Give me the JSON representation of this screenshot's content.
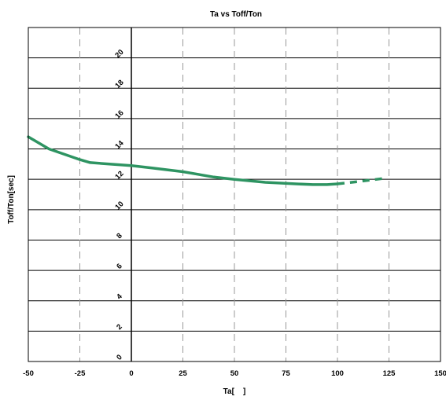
{
  "chart_data": {
    "type": "line",
    "title": "Ta vs Toff/Ton",
    "xlabel": "Ta[    ]",
    "ylabel": "Toff/Ton[sec]",
    "xlim": [
      -50,
      150
    ],
    "ylim": [
      0,
      22
    ],
    "x_ticks": [
      "-50",
      "-25",
      "0",
      "25",
      "50",
      "75",
      "100",
      "125",
      "150"
    ],
    "y_ticks": [
      "0",
      "2",
      "4",
      "6",
      "8",
      "10",
      "12",
      "14",
      "16",
      "18",
      "20"
    ],
    "grid": {
      "horizontal": "solid",
      "vertical": "dashed"
    },
    "line_color": "#2e9462",
    "series": [
      {
        "style": "solid",
        "x": [
          -50,
          -40,
          -25,
          -20,
          -10,
          0,
          10,
          25,
          40,
          50,
          65,
          80,
          88,
          95,
          100
        ],
        "y": [
          14.8,
          14.0,
          13.3,
          13.1,
          13.0,
          12.9,
          12.75,
          12.5,
          12.15,
          12.0,
          11.8,
          11.7,
          11.65,
          11.65,
          11.7
        ]
      },
      {
        "style": "dashed",
        "x": [
          100,
          110,
          122
        ],
        "y": [
          11.7,
          11.85,
          12.05
        ]
      }
    ]
  }
}
